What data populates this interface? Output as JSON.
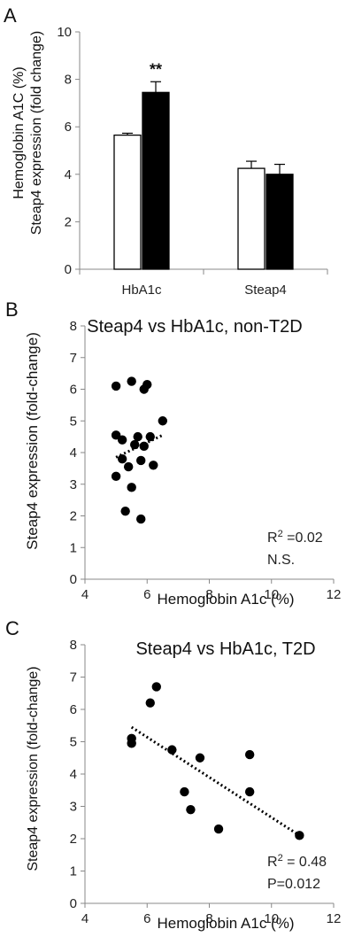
{
  "chart_data": [
    {
      "panel": "A",
      "type": "bar",
      "categories": [
        "HbA1c",
        "Steap4"
      ],
      "series": [
        {
          "values": [
            5.65,
            4.25
          ],
          "errors": [
            0.08,
            0.3
          ],
          "color": "#ffffff"
        },
        {
          "values": [
            7.45,
            4.0
          ],
          "errors": [
            0.45,
            0.42
          ],
          "color": "#000000"
        }
      ],
      "annotations": [
        {
          "category": "HbA1c",
          "series": 1,
          "text": "**"
        }
      ],
      "ylabel": [
        "Hemoglobin A1C (%)",
        "Steap4 expression (fold change)"
      ],
      "ylim": [
        0,
        10
      ],
      "yticks": [
        "0",
        "2",
        "4",
        "6",
        "8",
        "10"
      ],
      "grid": false
    },
    {
      "panel": "B",
      "type": "scatter",
      "title": "Steap4 vs HbA1c, non-T2D",
      "xlabel": "Hemoglobin A1c (%)",
      "ylabel": "Steap4 expression (fold-change)",
      "xlim": [
        4,
        12
      ],
      "ylim": [
        0,
        8
      ],
      "xticks": [
        "4",
        "6",
        "8",
        "10",
        "12"
      ],
      "yticks": [
        "0",
        "1",
        "2",
        "3",
        "4",
        "5",
        "6",
        "7",
        "8"
      ],
      "x": [
        5.0,
        5.0,
        5.0,
        5.2,
        5.2,
        5.3,
        5.4,
        5.5,
        5.5,
        5.6,
        5.7,
        5.8,
        5.8,
        5.9,
        5.9,
        6.0,
        6.1,
        6.2,
        6.5
      ],
      "y": [
        6.1,
        4.55,
        3.25,
        4.4,
        3.8,
        2.15,
        3.55,
        6.25,
        2.9,
        4.25,
        4.5,
        3.75,
        1.9,
        6.0,
        4.2,
        6.15,
        4.5,
        3.6,
        5.0
      ],
      "trendline": {
        "x": [
          5.0,
          6.5
        ],
        "y": [
          3.85,
          4.55
        ]
      },
      "stats": {
        "r2_prefix": "R",
        "r2_sup": "2",
        "r2_value": " =0.02",
        "note": "N.S."
      }
    },
    {
      "panel": "C",
      "type": "scatter",
      "title": "Steap4 vs HbA1c, T2D",
      "xlabel": "Hemoglobin A1c (%)",
      "ylabel": "Steap4 expression (fold-change)",
      "xlim": [
        4,
        12
      ],
      "ylim": [
        0,
        8
      ],
      "xticks": [
        "4",
        "6",
        "8",
        "10",
        "12"
      ],
      "yticks": [
        "0",
        "1",
        "2",
        "3",
        "4",
        "5",
        "6",
        "7",
        "8"
      ],
      "x": [
        5.5,
        5.5,
        6.1,
        6.3,
        6.8,
        7.2,
        7.4,
        7.7,
        8.3,
        9.3,
        9.3,
        10.9
      ],
      "y": [
        5.1,
        4.95,
        6.2,
        6.7,
        4.75,
        3.45,
        2.9,
        4.5,
        2.3,
        4.6,
        3.45,
        2.1
      ],
      "trendline": {
        "x": [
          5.5,
          10.9
        ],
        "y": [
          5.45,
          2.1
        ]
      },
      "stats": {
        "r2_prefix": "R",
        "r2_sup": "2",
        "r2_value": " = 0.48",
        "note": "P=0.012"
      }
    }
  ]
}
